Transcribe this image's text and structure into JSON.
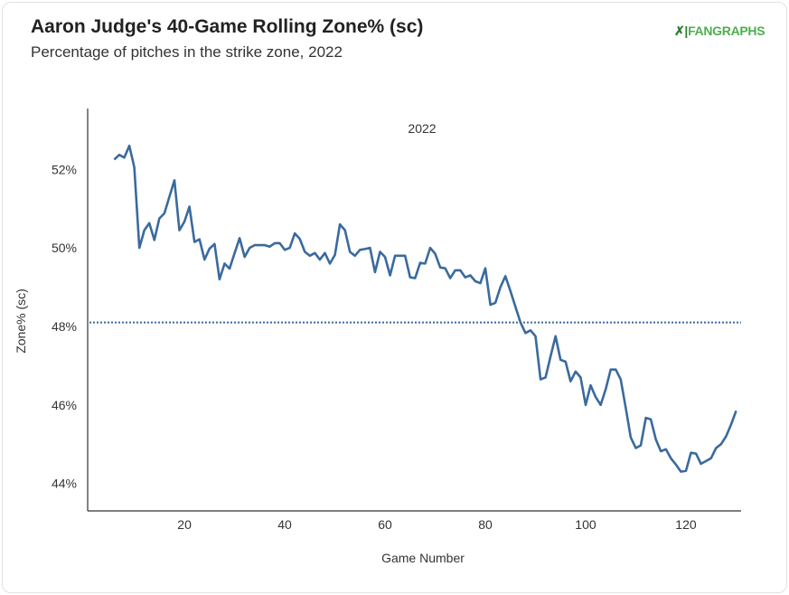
{
  "title": "Aaron Judge's 40-Game Rolling Zone% (sc)",
  "subtitle": "Percentage of pitches in the strike zone, 2022",
  "logo": "FANGRAPHS",
  "chart_data": {
    "type": "line",
    "title": "Aaron Judge's 40-Game Rolling Zone% (sc)",
    "subtitle": "Percentage of pitches in the strike zone, 2022",
    "xlabel": "Game Number",
    "ylabel": "Zone% (sc)",
    "annotation": "2022",
    "xlim": [
      0.7,
      131
    ],
    "ylim": [
      43.3,
      53.55
    ],
    "x_ticks": [
      20,
      40,
      60,
      80,
      100,
      120
    ],
    "y_ticks": [
      44,
      46,
      48,
      50,
      52
    ],
    "y_tick_labels": [
      "44%",
      "46%",
      "48%",
      "50%",
      "52%"
    ],
    "grid": false,
    "reference_line": {
      "value": 48.1,
      "style": "dotted"
    },
    "line_color": "#3a6a9e",
    "series": [
      {
        "x": [
          6,
          7,
          8,
          9,
          10,
          11,
          12,
          13,
          14,
          15,
          16,
          17,
          18,
          19,
          20,
          21,
          22,
          23,
          24,
          25,
          26,
          27,
          28,
          29,
          30,
          31,
          32,
          33,
          34,
          35,
          36,
          37,
          38,
          39,
          40,
          41,
          42,
          43,
          44,
          45,
          46,
          47,
          48,
          49,
          50,
          51,
          52,
          53,
          54,
          55,
          56,
          57,
          58,
          59,
          60,
          61,
          62,
          63,
          64,
          65,
          66,
          67,
          68,
          69,
          70,
          71,
          72,
          73,
          74,
          75,
          76,
          77,
          78,
          79,
          80,
          81,
          82,
          83,
          84,
          85,
          86,
          87,
          88,
          89,
          90,
          91,
          92,
          93,
          94,
          95,
          96,
          97,
          98,
          99,
          100,
          101,
          102,
          103,
          104,
          105,
          106,
          107,
          108,
          109,
          110,
          111,
          112,
          113,
          114,
          115,
          116,
          117,
          118,
          119,
          120,
          121,
          122,
          123,
          124,
          125,
          126,
          127,
          128,
          129,
          130
        ],
        "y": [
          52.25,
          52.37,
          52.3,
          52.6,
          52.05,
          50.0,
          50.45,
          50.63,
          50.2,
          50.75,
          50.88,
          51.3,
          51.72,
          50.45,
          50.67,
          51.05,
          50.15,
          50.22,
          49.7,
          49.98,
          50.1,
          49.2,
          49.6,
          49.47,
          49.87,
          50.25,
          49.77,
          50.0,
          50.07,
          50.07,
          50.07,
          50.03,
          50.12,
          50.12,
          49.95,
          50.0,
          50.37,
          50.23,
          49.9,
          49.8,
          49.87,
          49.7,
          49.87,
          49.6,
          49.82,
          50.6,
          50.45,
          49.9,
          49.8,
          49.95,
          49.97,
          50.0,
          49.38,
          49.9,
          49.77,
          49.3,
          49.8,
          49.8,
          49.8,
          49.25,
          49.23,
          49.62,
          49.6,
          50.0,
          49.85,
          49.5,
          49.48,
          49.23,
          49.43,
          49.43,
          49.25,
          49.3,
          49.15,
          49.1,
          49.48,
          48.55,
          48.6,
          49.0,
          49.28,
          48.9,
          48.5,
          48.1,
          47.83,
          47.9,
          47.75,
          46.65,
          46.7,
          47.23,
          47.75,
          47.15,
          47.1,
          46.6,
          46.85,
          46.7,
          46.0,
          46.5,
          46.2,
          46.0,
          46.4,
          46.9,
          46.9,
          46.65,
          45.92,
          45.17,
          44.9,
          44.97,
          45.67,
          45.63,
          45.12,
          44.82,
          44.87,
          44.64,
          44.48,
          44.3,
          44.32,
          44.78,
          44.76,
          44.5,
          44.57,
          44.64,
          44.9,
          45.0,
          45.2,
          45.5,
          45.85
        ]
      }
    ]
  }
}
